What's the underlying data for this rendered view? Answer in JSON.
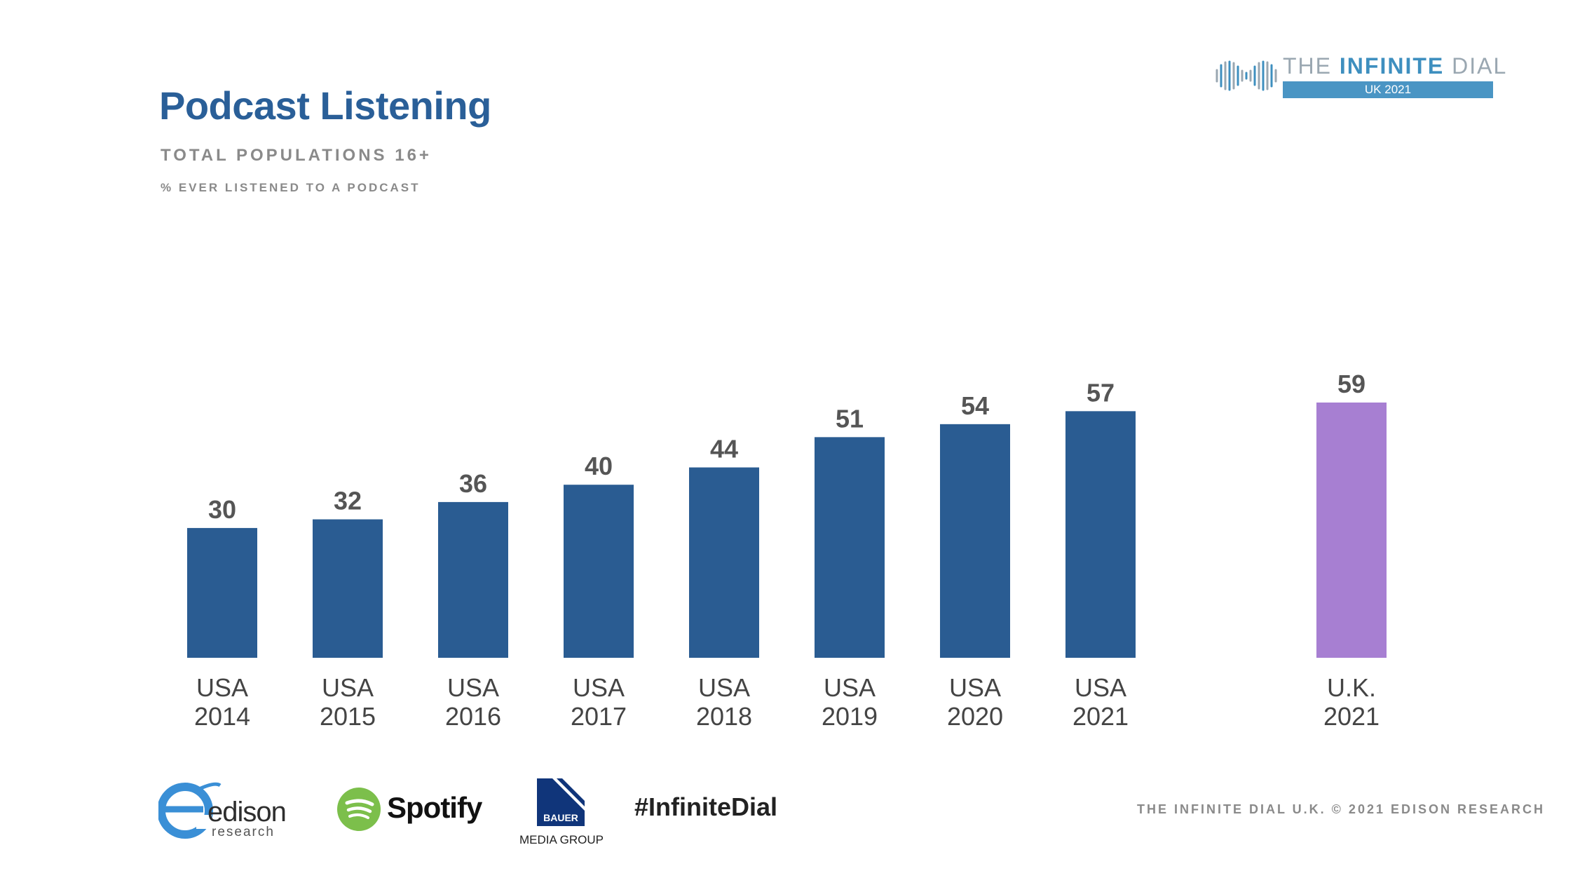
{
  "header": {
    "title": "Podcast Listening",
    "subtitle": "TOTAL POPULATIONS 16+",
    "metric": "% EVER LISTENED TO A PODCAST"
  },
  "brand": {
    "prefix": "THE ",
    "bold": "INFINITE",
    "suffix": " DIAL",
    "edition": "UK 2021"
  },
  "chart_data": {
    "type": "bar",
    "title": "Podcast Listening",
    "ylabel": "% ever listened to a podcast",
    "categories": [
      [
        "USA",
        "2014"
      ],
      [
        "USA",
        "2015"
      ],
      [
        "USA",
        "2016"
      ],
      [
        "USA",
        "2017"
      ],
      [
        "USA",
        "2018"
      ],
      [
        "USA",
        "2019"
      ],
      [
        "USA",
        "2020"
      ],
      [
        "USA",
        "2021"
      ],
      [
        "U.K.",
        "2021"
      ]
    ],
    "values": [
      30,
      32,
      36,
      40,
      44,
      51,
      54,
      57,
      59
    ],
    "colors": [
      "#2a5c92",
      "#2a5c92",
      "#2a5c92",
      "#2a5c92",
      "#2a5c92",
      "#2a5c92",
      "#2a5c92",
      "#2a5c92",
      "#a77fd2"
    ],
    "ylim": [
      0,
      59
    ],
    "grid": false,
    "legend": "none"
  },
  "footer": {
    "edison": "edison",
    "edison_sub": "research",
    "spotify": "Spotify",
    "bauer": "BAUER",
    "bauer_sub": "MEDIA GROUP",
    "hashtag": "#InfiniteDial",
    "copyright": "THE INFINITE DIAL U.K.  © 2021 EDISON RESEARCH"
  },
  "colors": {
    "title": "#2a5f98",
    "usa_bar": "#2a5c92",
    "uk_bar": "#a77fd2",
    "spotify_green": "#1DB954",
    "edison_blue": "#3a8fd6"
  }
}
